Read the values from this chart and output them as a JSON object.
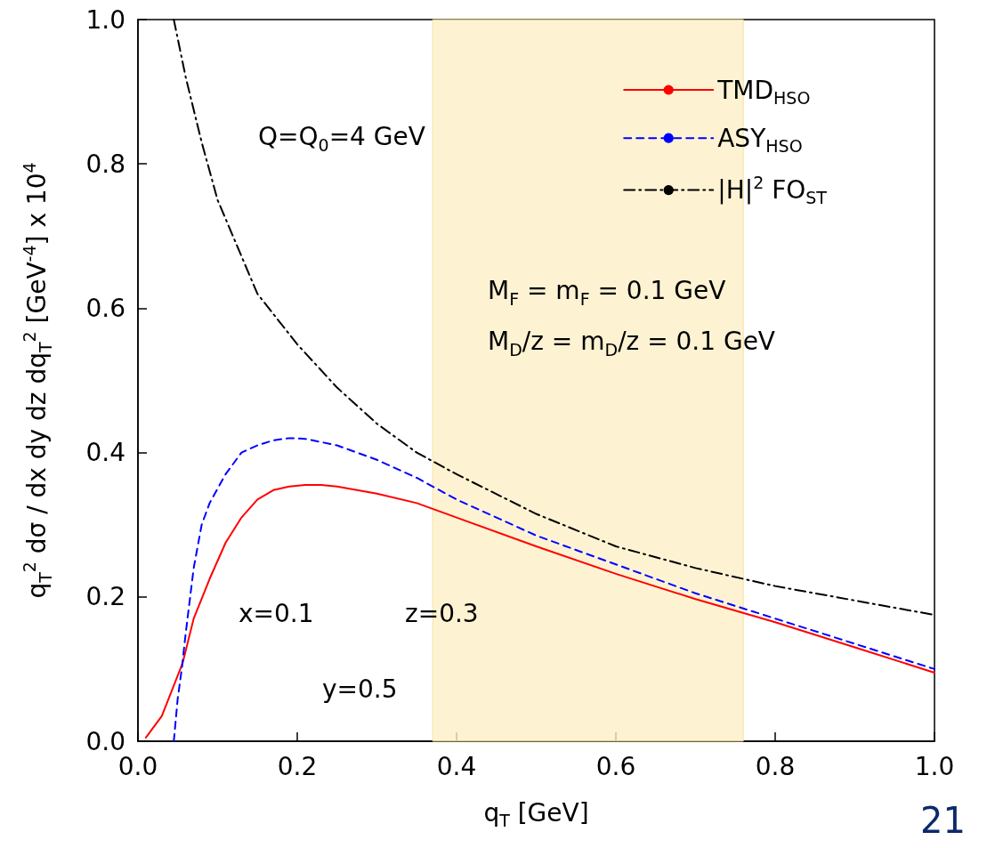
{
  "chart_data": {
    "type": "line",
    "xlabel": "q$_{T}$ [GeV]",
    "ylabel": "q$_{T}$$^{2}$ dσ / dx dy dz dq$_{T}$$^{2}$ [GeV$^{-4}$] x 10$^{4}$",
    "xlim": [
      0,
      1
    ],
    "ylim": [
      0,
      1
    ],
    "xticks": [
      {
        "value": 0,
        "label": "0.0"
      },
      {
        "value": 0.2,
        "label": "0.2"
      },
      {
        "value": 0.4,
        "label": "0.4"
      },
      {
        "value": 0.6,
        "label": "0.6"
      },
      {
        "value": 0.8,
        "label": "0.8"
      },
      {
        "value": 1,
        "label": "1.0"
      }
    ],
    "yticks": [
      {
        "value": 0,
        "label": "0.0"
      },
      {
        "value": 0.2,
        "label": "0.2"
      },
      {
        "value": 0.4,
        "label": "0.4"
      },
      {
        "value": 0.6,
        "label": "0.6"
      },
      {
        "value": 0.8,
        "label": "0.8"
      },
      {
        "value": 1,
        "label": "1.0"
      }
    ],
    "grid": false,
    "legend": "top right",
    "marker": "none",
    "series": [
      {
        "name": "TMD$_{HSO}$",
        "color": "#ff0000",
        "line_style": "solid",
        "x": [
          0.01,
          0.03,
          0.056,
          0.07,
          0.09,
          0.11,
          0.13,
          0.15,
          0.17,
          0.19,
          0.21,
          0.23,
          0.25,
          0.3,
          0.35,
          0.4,
          0.5,
          0.6,
          0.7,
          0.8,
          0.9,
          1.0
        ],
        "values": [
          0.005,
          0.035,
          0.108,
          0.17,
          0.225,
          0.275,
          0.31,
          0.335,
          0.348,
          0.353,
          0.355,
          0.355,
          0.353,
          0.343,
          0.33,
          0.31,
          0.27,
          0.232,
          0.197,
          0.165,
          0.13,
          0.095
        ]
      },
      {
        "name": "ASY$_{HSO}$",
        "color": "#0000ff",
        "line_style": "dashed",
        "x": [
          0.045,
          0.05,
          0.055,
          0.06,
          0.07,
          0.08,
          0.09,
          0.11,
          0.13,
          0.15,
          0.17,
          0.19,
          0.21,
          0.25,
          0.3,
          0.35,
          0.4,
          0.5,
          0.6,
          0.7,
          0.8,
          0.9,
          1.0
        ],
        "values": [
          0,
          0.06,
          0.1,
          0.15,
          0.24,
          0.3,
          0.33,
          0.37,
          0.4,
          0.41,
          0.417,
          0.42,
          0.419,
          0.41,
          0.39,
          0.365,
          0.335,
          0.285,
          0.245,
          0.205,
          0.17,
          0.135,
          0.1
        ]
      },
      {
        "name": "|H|$^{2}$ FO$_{ST}$",
        "color": "#000000",
        "line_style": "dashdot",
        "x": [
          0.045,
          0.06,
          0.08,
          0.1,
          0.15,
          0.2,
          0.25,
          0.3,
          0.35,
          0.4,
          0.5,
          0.6,
          0.7,
          0.8,
          0.9,
          1.0
        ],
        "values": [
          1.0,
          0.92,
          0.83,
          0.75,
          0.62,
          0.55,
          0.49,
          0.44,
          0.4,
          0.37,
          0.315,
          0.27,
          0.24,
          0.215,
          0.195,
          0.175
        ]
      }
    ],
    "bands": [
      {
        "axis": "x",
        "from": 0.37,
        "to": 0.76,
        "color": "#fdf0c8"
      }
    ],
    "annotations": [
      "Q=Q$_{0}$=4 GeV",
      "M$_{F}$ = m$_{F}$ = 0.1 GeV",
      "M$_{D}$/z = m$_{D}$/z = 0.1 GeV",
      "x=0.1",
      "z=0.3",
      "y=0.5",
      "21"
    ]
  }
}
